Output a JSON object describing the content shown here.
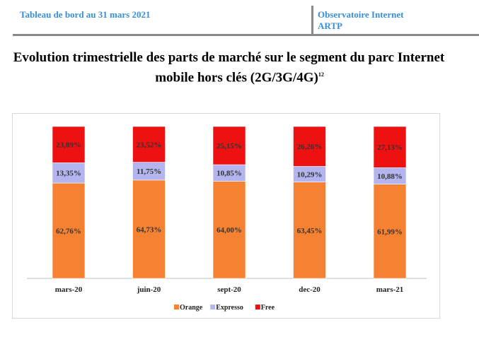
{
  "header": {
    "left": "Tableau de bord au 31 mars  2021",
    "right_line1": "Observatoire Internet",
    "right_line2": "ARTP"
  },
  "title": {
    "line1": "Evolution trimestrielle des parts de marché sur le segment du parc Internet",
    "line2": "mobile hors clés (2G/3G/4G)",
    "footnote": "12"
  },
  "chart_data": {
    "type": "bar",
    "stacked": true,
    "percent": true,
    "categories": [
      "mars-20",
      "juin-20",
      "sept-20",
      "dec-20",
      "mars-21"
    ],
    "series": [
      {
        "name": "Orange",
        "color": "#f58232",
        "values": [
          62.76,
          64.73,
          64.0,
          63.45,
          61.99
        ],
        "labels": [
          "62,76%",
          "64,73%",
          "64,00%",
          "63,45%",
          "61,99%"
        ]
      },
      {
        "name": "Expresso",
        "color": "#b4b4ee",
        "values": [
          13.35,
          11.75,
          10.85,
          10.29,
          10.88
        ],
        "labels": [
          "13,35%",
          "11,75%",
          "10,85%",
          "10,29%",
          "10,88%"
        ]
      },
      {
        "name": "Free",
        "color": "#ee1111",
        "values": [
          23.89,
          23.52,
          25.15,
          26.26,
          27.13
        ],
        "labels": [
          "23,89%",
          "23,52%",
          "25,15%",
          "26,26%",
          "27,13%"
        ]
      }
    ],
    "ylim": [
      0,
      100
    ],
    "grid": false,
    "legend": "bottom"
  }
}
